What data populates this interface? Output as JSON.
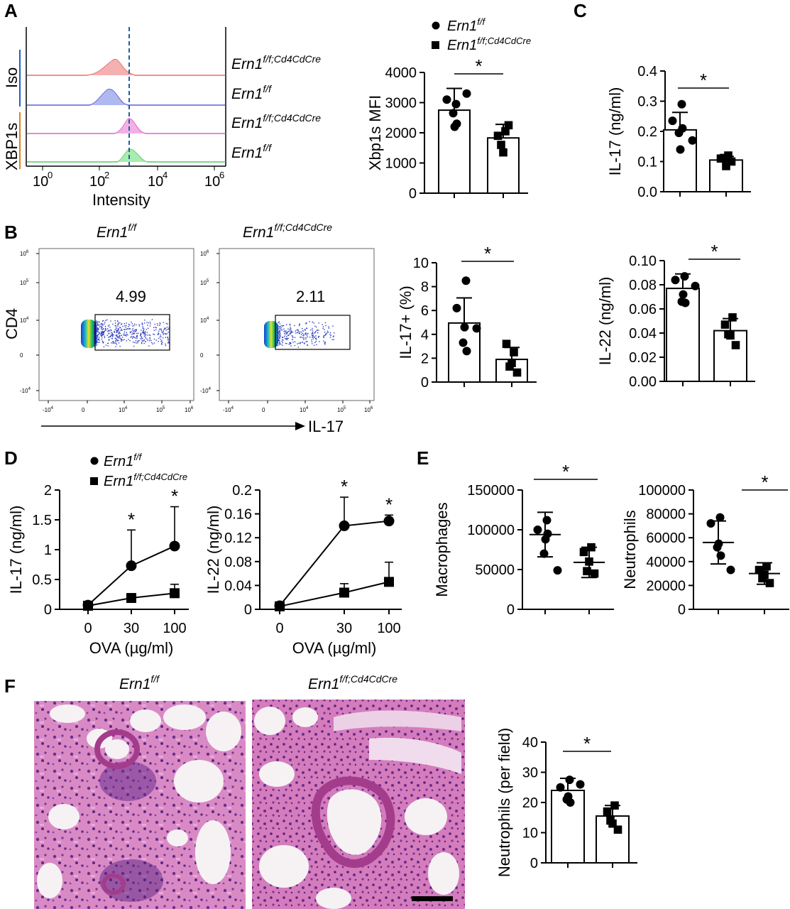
{
  "panels": {
    "A": "A",
    "B": "B",
    "C": "C",
    "D": "D",
    "E": "E",
    "F": "F"
  },
  "genotypes": {
    "wt": "Ern1",
    "wt_sup": "f/f",
    "ko": "Ern1",
    "ko_sup": "f/f;Cd4CdCre"
  },
  "colors": {
    "accent_blue": "#1f5fbf",
    "accent_orange": "#e08020",
    "iso_ko": "#e05050",
    "iso_wt": "#4040d0",
    "xbp_ko": "#e040c0",
    "xbp_wt": "#30c040",
    "dashed": "#1f5f9f",
    "he_pink": "#d97fc0",
    "he_purple": "#6a2d8f"
  },
  "histogram": {
    "group_iso": "Iso",
    "group_xbp": "XBP1s",
    "xlabel": "Intensity",
    "ticks": [
      "10",
      "10",
      "10",
      "10"
    ],
    "tick_exp": [
      "0",
      "2",
      "4",
      "6"
    ]
  },
  "facs": {
    "ylabel": "CD4",
    "xlabel": "IL-17",
    "gates": [
      "4.99",
      "2.11"
    ],
    "xticks": [
      "-10",
      "0",
      "10",
      "10",
      "10"
    ],
    "xticks_exp": [
      "4",
      "",
      "4",
      "5",
      "6"
    ],
    "yticks": [
      "10",
      "10",
      "10",
      "0",
      "-10"
    ],
    "yticks_exp": [
      "6",
      "5",
      "4",
      "",
      "4"
    ]
  },
  "legend": {
    "wt": "Ern1",
    "wt_sup": "f/f",
    "ko": "Ern1",
    "ko_sup": "f/f;Cd4CdCre"
  },
  "significance": "*",
  "chart_data": [
    {
      "id": "A-bar",
      "type": "bar",
      "ylabel": "Xbp1s MFI",
      "ylim": [
        0,
        4000
      ],
      "yticks": [
        "0",
        "1000",
        "2000",
        "3000",
        "4000"
      ],
      "categories": [
        "Ern1 f/f",
        "Ern1 f/f;Cd4CdCre"
      ],
      "values": [
        2750,
        1830
      ],
      "errors": [
        720,
        450
      ],
      "points": [
        [
          2950,
          3100,
          2200,
          2300,
          2650,
          3300
        ],
        [
          2050,
          1900,
          1350,
          2250,
          1600
        ]
      ],
      "markers": [
        "circle",
        "square"
      ]
    },
    {
      "id": "C-IL17",
      "type": "bar",
      "ylabel": "IL-17 (ng/ml)",
      "ylim": [
        0,
        0.4
      ],
      "yticks": [
        "0.0",
        "0.1",
        "0.2",
        "0.3",
        "0.4"
      ],
      "categories": [
        "Ern1 f/f",
        "Ern1 f/f;Cd4CdCre"
      ],
      "values": [
        0.205,
        0.105
      ],
      "errors": [
        0.058,
        0.012
      ],
      "points": [
        [
          0.29,
          0.235,
          0.14,
          0.21,
          0.195,
          0.17
        ],
        [
          0.12,
          0.11,
          0.085,
          0.1,
          0.112
        ]
      ],
      "markers": [
        "circle",
        "square"
      ]
    },
    {
      "id": "B-bar",
      "type": "bar",
      "ylabel": "IL-17+ (%)",
      "ylim": [
        0,
        10
      ],
      "yticks": [
        "0",
        "2",
        "4",
        "6",
        "8",
        "10"
      ],
      "categories": [
        "Ern1 f/f",
        "Ern1 f/f;Cd4CdCre"
      ],
      "values": [
        4.95,
        1.9
      ],
      "errors": [
        2.1,
        1.0
      ],
      "points": [
        [
          8.5,
          6.2,
          4.6,
          2.6,
          3.3,
          4.5
        ],
        [
          2.5,
          3.2,
          1.6,
          0.8,
          1.3
        ]
      ],
      "markers": [
        "circle",
        "square"
      ]
    },
    {
      "id": "C-IL22",
      "type": "bar",
      "ylabel": "IL-22 (ng/ml)",
      "ylim": [
        0,
        0.1
      ],
      "yticks": [
        "0.00",
        "0.02",
        "0.04",
        "0.06",
        "0.08",
        "0.10"
      ],
      "categories": [
        "Ern1 f/f",
        "Ern1 f/f;Cd4CdCre"
      ],
      "values": [
        0.077,
        0.042
      ],
      "errors": [
        0.012,
        0.01
      ],
      "points": [
        [
          0.087,
          0.084,
          0.072,
          0.065,
          0.066,
          0.079
        ],
        [
          0.053,
          0.047,
          0.038,
          0.03,
          0.039
        ]
      ],
      "markers": [
        "circle",
        "square"
      ]
    },
    {
      "id": "D-IL17",
      "type": "line",
      "ylabel": "IL-17 (ng/ml)",
      "xlabel": "OVA (µg/ml)",
      "categories": [
        "0",
        "30",
        "100"
      ],
      "ylim": [
        0,
        2
      ],
      "yticks": [
        "0",
        "0.5",
        "1",
        "1.5",
        "2"
      ],
      "series": [
        {
          "name": "Ern1 f/f",
          "values": [
            0.07,
            0.73,
            1.06
          ],
          "errors": [
            0,
            0.6,
            0.66
          ],
          "marker": "circle"
        },
        {
          "name": "Ern1 f/f;Cd4CdCre",
          "values": [
            0.06,
            0.19,
            0.27
          ],
          "errors": [
            0,
            0.05,
            0.15
          ],
          "marker": "square"
        }
      ],
      "stars": [
        false,
        true,
        true
      ]
    },
    {
      "id": "D-IL22",
      "type": "line",
      "ylabel": "IL-22 (ng/ml)",
      "xlabel": "OVA (µg/ml)",
      "categories": [
        "0",
        "30",
        "100"
      ],
      "ylim": [
        0,
        0.2
      ],
      "yticks": [
        "0",
        "0.04",
        "0.08",
        "0.12",
        "0.16",
        "0.2"
      ],
      "series": [
        {
          "name": "Ern1 f/f",
          "values": [
            0.006,
            0.14,
            0.148
          ],
          "errors": [
            0,
            0.048,
            0.01
          ],
          "marker": "circle"
        },
        {
          "name": "Ern1 f/f;Cd4CdCre",
          "values": [
            0.005,
            0.028,
            0.046
          ],
          "errors": [
            0,
            0.015,
            0.033
          ],
          "marker": "square"
        }
      ],
      "stars": [
        false,
        true,
        true
      ]
    },
    {
      "id": "E-mac",
      "type": "scatter",
      "ylabel": "Macrophages",
      "ylim": [
        0,
        150000
      ],
      "yticks": [
        "0",
        "50000",
        "100000",
        "150000"
      ],
      "categories": [
        "Ern1 f/f",
        "Ern1 f/f;Cd4CdCre"
      ],
      "values": [
        94000,
        59000
      ],
      "errors": [
        28000,
        19000
      ],
      "points": [
        [
          112000,
          100000,
          88000,
          95000,
          70000,
          49000
        ],
        [
          78000,
          72000,
          60000,
          45000,
          48000
        ]
      ],
      "markers": [
        "circle",
        "square"
      ]
    },
    {
      "id": "E-neu",
      "type": "scatter",
      "ylabel": "Neutrophils",
      "ylim": [
        0,
        100000
      ],
      "yticks": [
        "0",
        "20000",
        "40000",
        "60000",
        "80000",
        "100000"
      ],
      "categories": [
        "Ern1 f/f",
        "Ern1 f/f;Cd4CdCre"
      ],
      "values": [
        56000,
        30000
      ],
      "errors": [
        18000,
        9000
      ],
      "points": [
        [
          77000,
          72000,
          55000,
          45000,
          52000,
          33000
        ],
        [
          36000,
          33000,
          29000,
          22000,
          26000
        ]
      ],
      "markers": [
        "circle",
        "square"
      ]
    },
    {
      "id": "F-bar",
      "type": "bar",
      "ylabel": "Neutrophils (per field)",
      "ylim": [
        0,
        40
      ],
      "yticks": [
        "0",
        "10",
        "20",
        "30",
        "40"
      ],
      "categories": [
        "Ern1 f/f",
        "Ern1 f/f;Cd4CdCre"
      ],
      "values": [
        24,
        15.5
      ],
      "errors": [
        4,
        3.5
      ],
      "points": [
        [
          27.5,
          25,
          22,
          20,
          21,
          26
        ],
        [
          19,
          17,
          13,
          11,
          14
        ]
      ],
      "markers": [
        "circle",
        "square"
      ]
    }
  ]
}
